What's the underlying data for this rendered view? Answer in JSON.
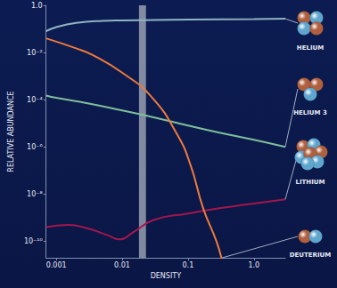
{
  "chart_data": {
    "type": "line",
    "x_label": "DENSITY",
    "y_label": "RELATIVE ABUNDANCE",
    "log": true,
    "grid": false,
    "xlim": [
      0.0007,
      3
    ],
    "xticks": [
      0.001,
      0.01,
      0.1,
      {
        "value": 1,
        "label": "1.0"
      }
    ],
    "ylim": [
      2e-11,
      1
    ],
    "yticks": [
      {
        "value": 1,
        "label": "1.0"
      },
      {
        "value": 0.01,
        "label": "10⁻²"
      },
      {
        "value": 0.0001,
        "label": "10⁻⁴"
      },
      {
        "value": 1e-06,
        "label": "10⁻⁶"
      },
      {
        "value": 1e-08,
        "label": "10⁻⁸"
      },
      {
        "value": 1e-10,
        "label": "10⁻¹⁰"
      }
    ],
    "band": [
      0.018,
      0.023
    ],
    "series": [
      {
        "name": "HELIUM",
        "color": "#8fb4c4",
        "x": [
          0.0007,
          0.001,
          0.002,
          0.005,
          0.01,
          0.1,
          1,
          3
        ],
        "values": [
          0.08,
          0.12,
          0.18,
          0.22,
          0.23,
          0.25,
          0.26,
          0.27
        ]
      },
      {
        "name": "HELIUM 3",
        "color": "#7fbf9c",
        "x": [
          0.0007,
          0.001,
          0.003,
          0.01,
          0.03,
          0.1,
          0.3,
          1,
          3
        ],
        "values": [
          0.00015,
          0.00012,
          7e-05,
          3.5e-05,
          1.8e-05,
          8e-06,
          4e-06,
          2e-06,
          1e-06
        ]
      },
      {
        "name": "LITHIUM",
        "color": "#a3174c",
        "x": [
          0.0007,
          0.0015,
          0.003,
          0.006,
          0.009,
          0.015,
          0.03,
          0.1,
          0.3,
          1,
          3
        ],
        "values": [
          4e-10,
          5e-10,
          3.5e-10,
          1.8e-10,
          1.2e-10,
          2.5e-10,
          8e-10,
          1.5e-09,
          2.5e-09,
          4e-09,
          6e-09
        ]
      },
      {
        "name": "DEUTERIUM",
        "color": "#ee7a3c",
        "x": [
          0.0007,
          0.002,
          0.0035,
          0.01,
          0.028,
          0.07,
          0.11,
          0.17,
          0.27,
          0.33
        ],
        "values": [
          0.04,
          0.015,
          0.008,
          0.0014,
          0.00013,
          3e-06,
          1.6e-07,
          2.5e-09,
          1e-10,
          1.5e-11
        ]
      }
    ]
  }
}
